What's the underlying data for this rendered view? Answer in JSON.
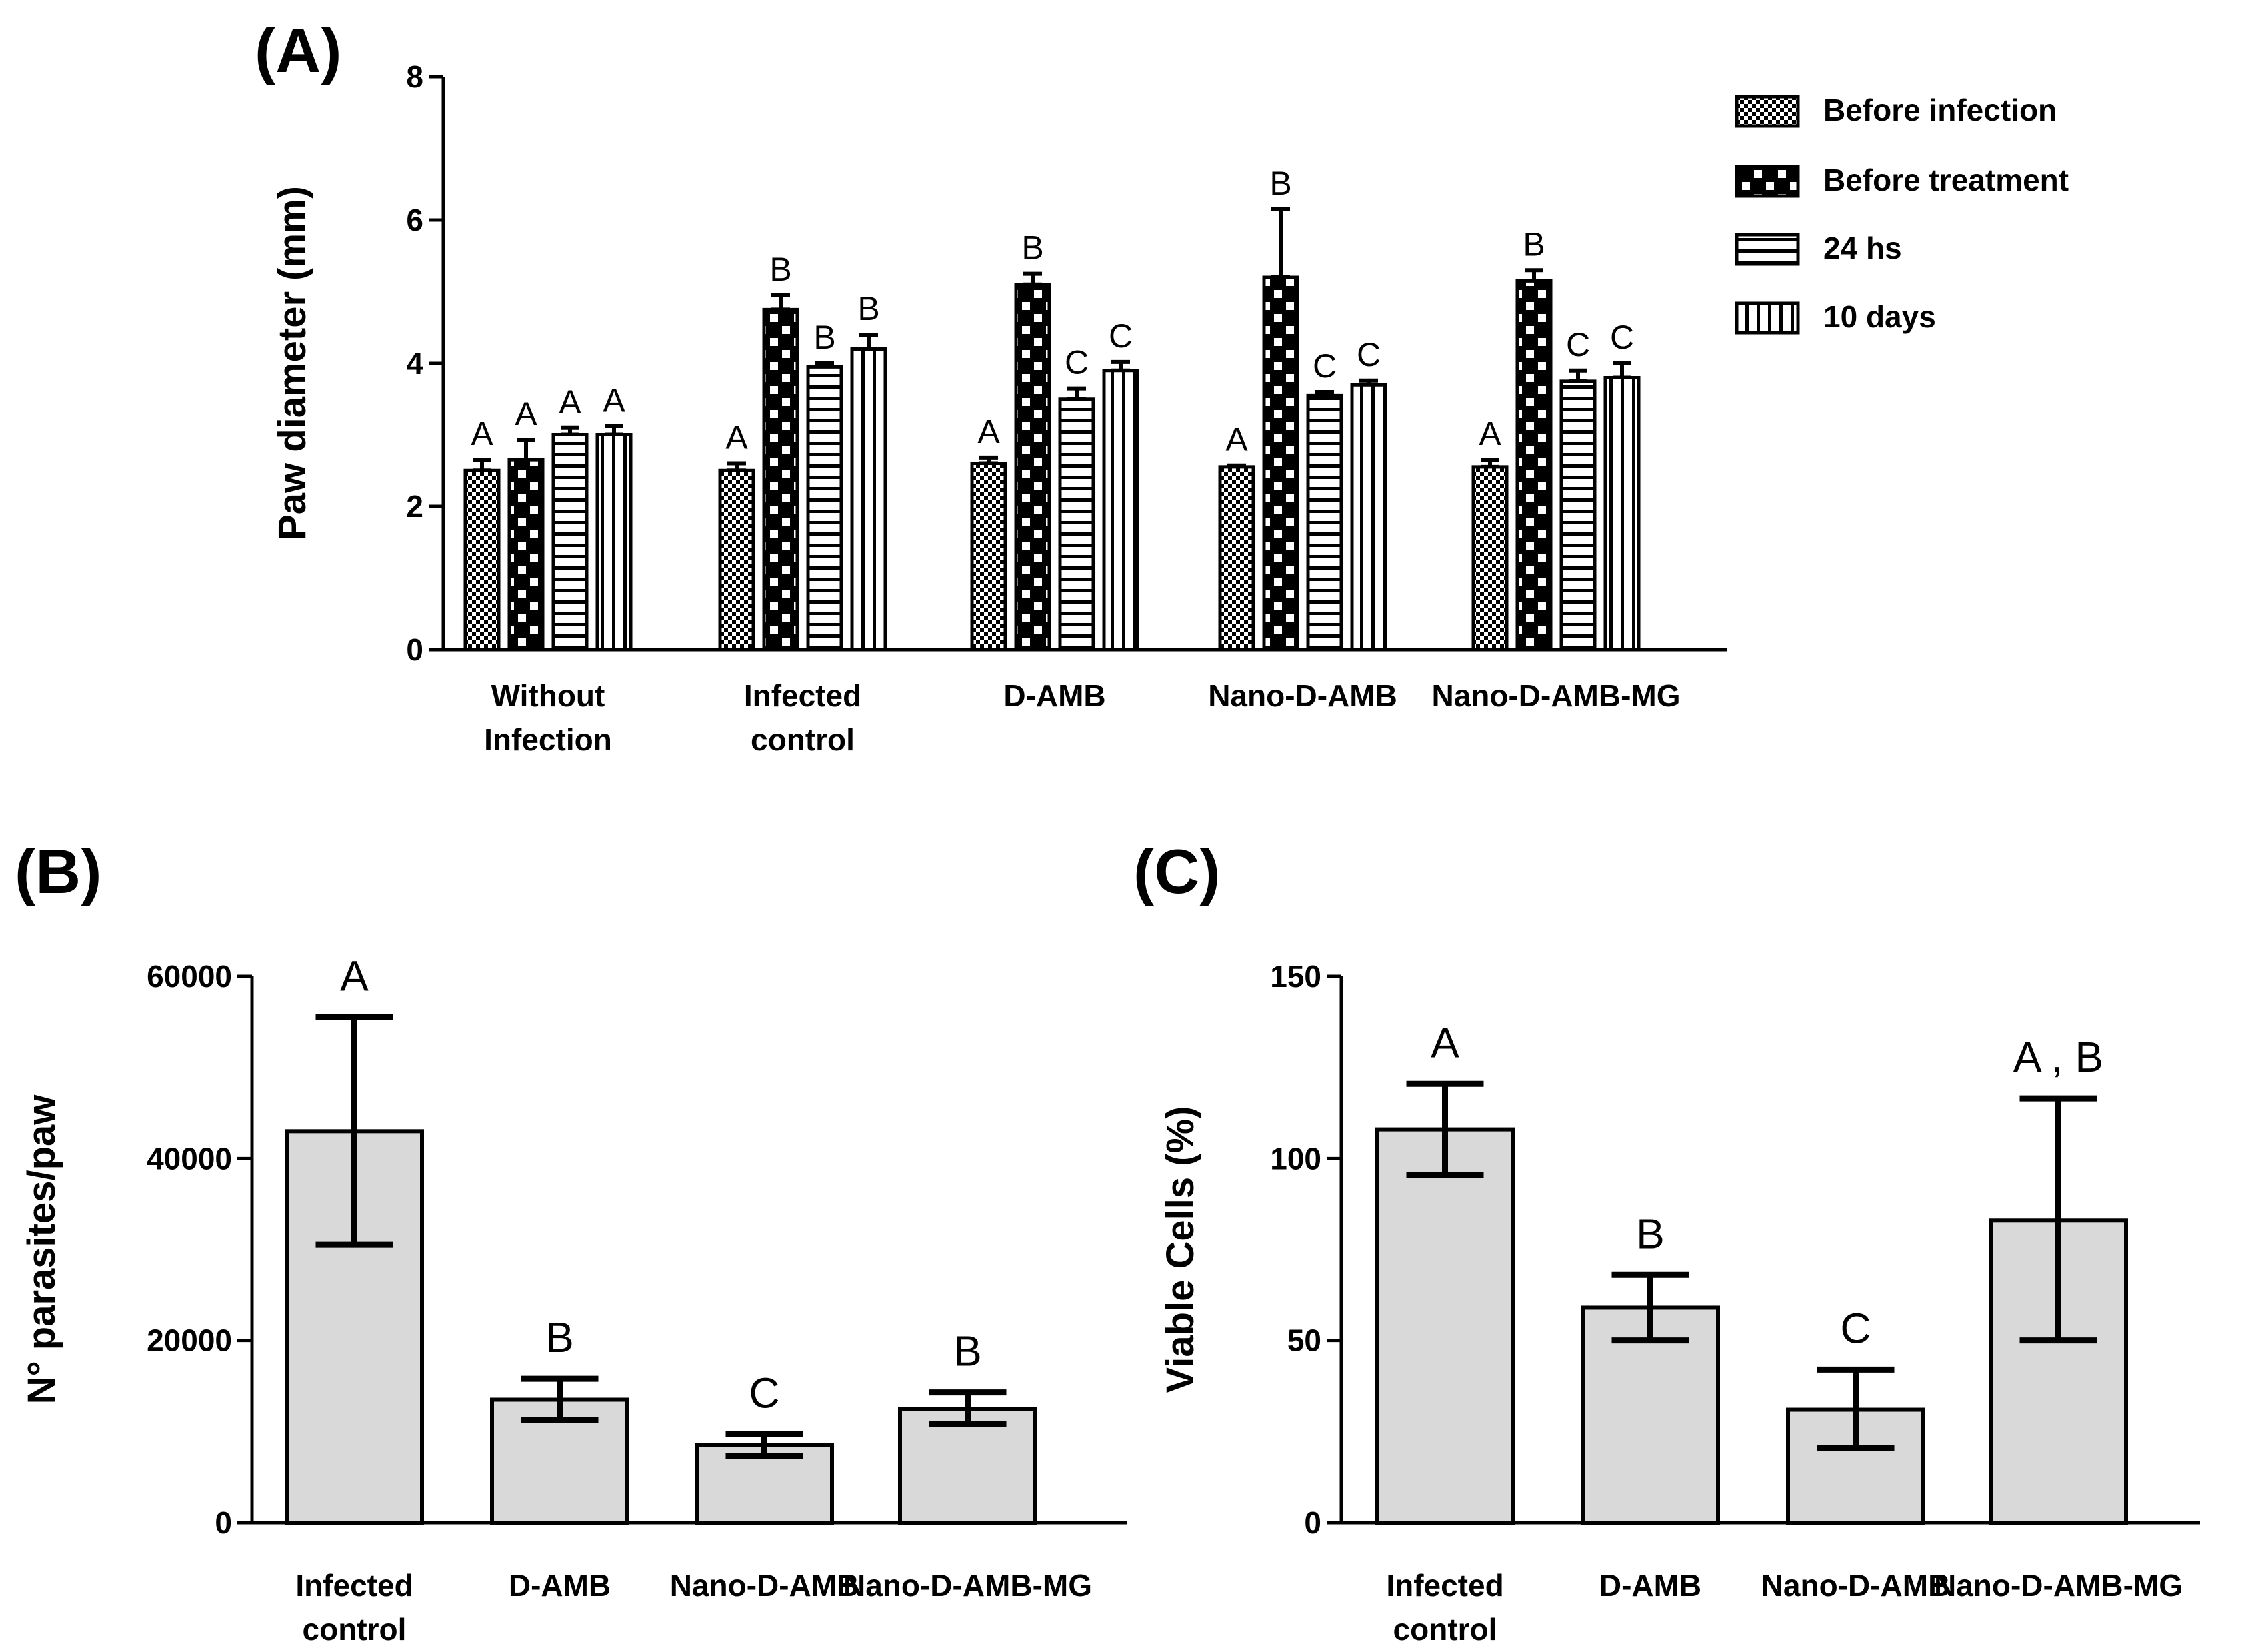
{
  "chart_data": [
    {
      "panel": "(A)",
      "type": "bar",
      "ylabel": "Paw diameter (mm)",
      "xlabel": "",
      "ylim": [
        0,
        8
      ],
      "yticks": [
        "0",
        "2",
        "4",
        "6",
        "8"
      ],
      "categories": [
        [
          "Without",
          "Infection"
        ],
        [
          "Infected",
          "control"
        ],
        [
          "D-AMB"
        ],
        [
          "Nano-D-AMB"
        ],
        [
          "Nano-D-AMB-MG"
        ]
      ],
      "legend_position": "top-right",
      "series": [
        {
          "name": "Before infection",
          "pattern": "fine-check",
          "values": [
            2.5,
            2.5,
            2.6,
            2.55,
            2.55
          ],
          "errors": [
            0.15,
            0.1,
            0.08,
            0.02,
            0.1
          ],
          "letters": [
            "A",
            "A",
            "A",
            "A",
            "A"
          ]
        },
        {
          "name": "Before treatment",
          "pattern": "large-check",
          "values": [
            2.65,
            4.75,
            5.1,
            5.2,
            5.15
          ],
          "errors": [
            0.28,
            0.2,
            0.15,
            0.95,
            0.15
          ],
          "letters": [
            "A",
            "B",
            "B",
            "B",
            "B"
          ]
        },
        {
          "name": "24 hs",
          "pattern": "horizontal",
          "values": [
            3.0,
            3.95,
            3.5,
            3.55,
            3.75
          ],
          "errors": [
            0.1,
            0.05,
            0.15,
            0.05,
            0.15
          ],
          "letters": [
            "A",
            "B",
            "C",
            "C",
            "C"
          ]
        },
        {
          "name": "10 days",
          "pattern": "vertical",
          "values": [
            3.0,
            4.2,
            3.9,
            3.7,
            3.8
          ],
          "errors": [
            0.12,
            0.2,
            0.12,
            0.06,
            0.2
          ],
          "letters": [
            "A",
            "B",
            "C",
            "C",
            "C"
          ]
        }
      ]
    },
    {
      "panel": "(B)",
      "type": "bar",
      "ylabel": "N° parasites/paw",
      "xlabel": "",
      "ylim": [
        0,
        60000
      ],
      "yticks": [
        "0",
        "20000",
        "40000",
        "60000"
      ],
      "categories": [
        [
          "Infected",
          "control"
        ],
        [
          "D-AMB"
        ],
        [
          "Nano-D-AMB"
        ],
        [
          "Nano-D-AMB-MG"
        ]
      ],
      "series": [
        {
          "name": "N° parasites/paw",
          "values": [
            43000,
            13500,
            8500,
            12500
          ],
          "error_low": [
            30500,
            11300,
            7300,
            10800
          ],
          "error_high": [
            55500,
            15800,
            9700,
            14300
          ],
          "letters": [
            "A",
            "B",
            "C",
            "B"
          ]
        }
      ]
    },
    {
      "panel": "(C)",
      "type": "bar",
      "ylabel": "Viable Cells (%)",
      "xlabel": "",
      "ylim": [
        0,
        150
      ],
      "yticks": [
        "0",
        "50",
        "100",
        "150"
      ],
      "categories": [
        [
          "Infected",
          "control"
        ],
        [
          "D-AMB"
        ],
        [
          "Nano-D-AMB"
        ],
        [
          "Nano-D-AMB-MG"
        ]
      ],
      "series": [
        {
          "name": "Viable Cells (%)",
          "values": [
            108,
            59,
            31,
            83
          ],
          "error_low": [
            95.5,
            50,
            20.5,
            50
          ],
          "error_high": [
            120.5,
            68,
            42,
            116.5
          ],
          "letters": [
            "A",
            "B",
            "C",
            "A,B"
          ]
        }
      ]
    }
  ]
}
